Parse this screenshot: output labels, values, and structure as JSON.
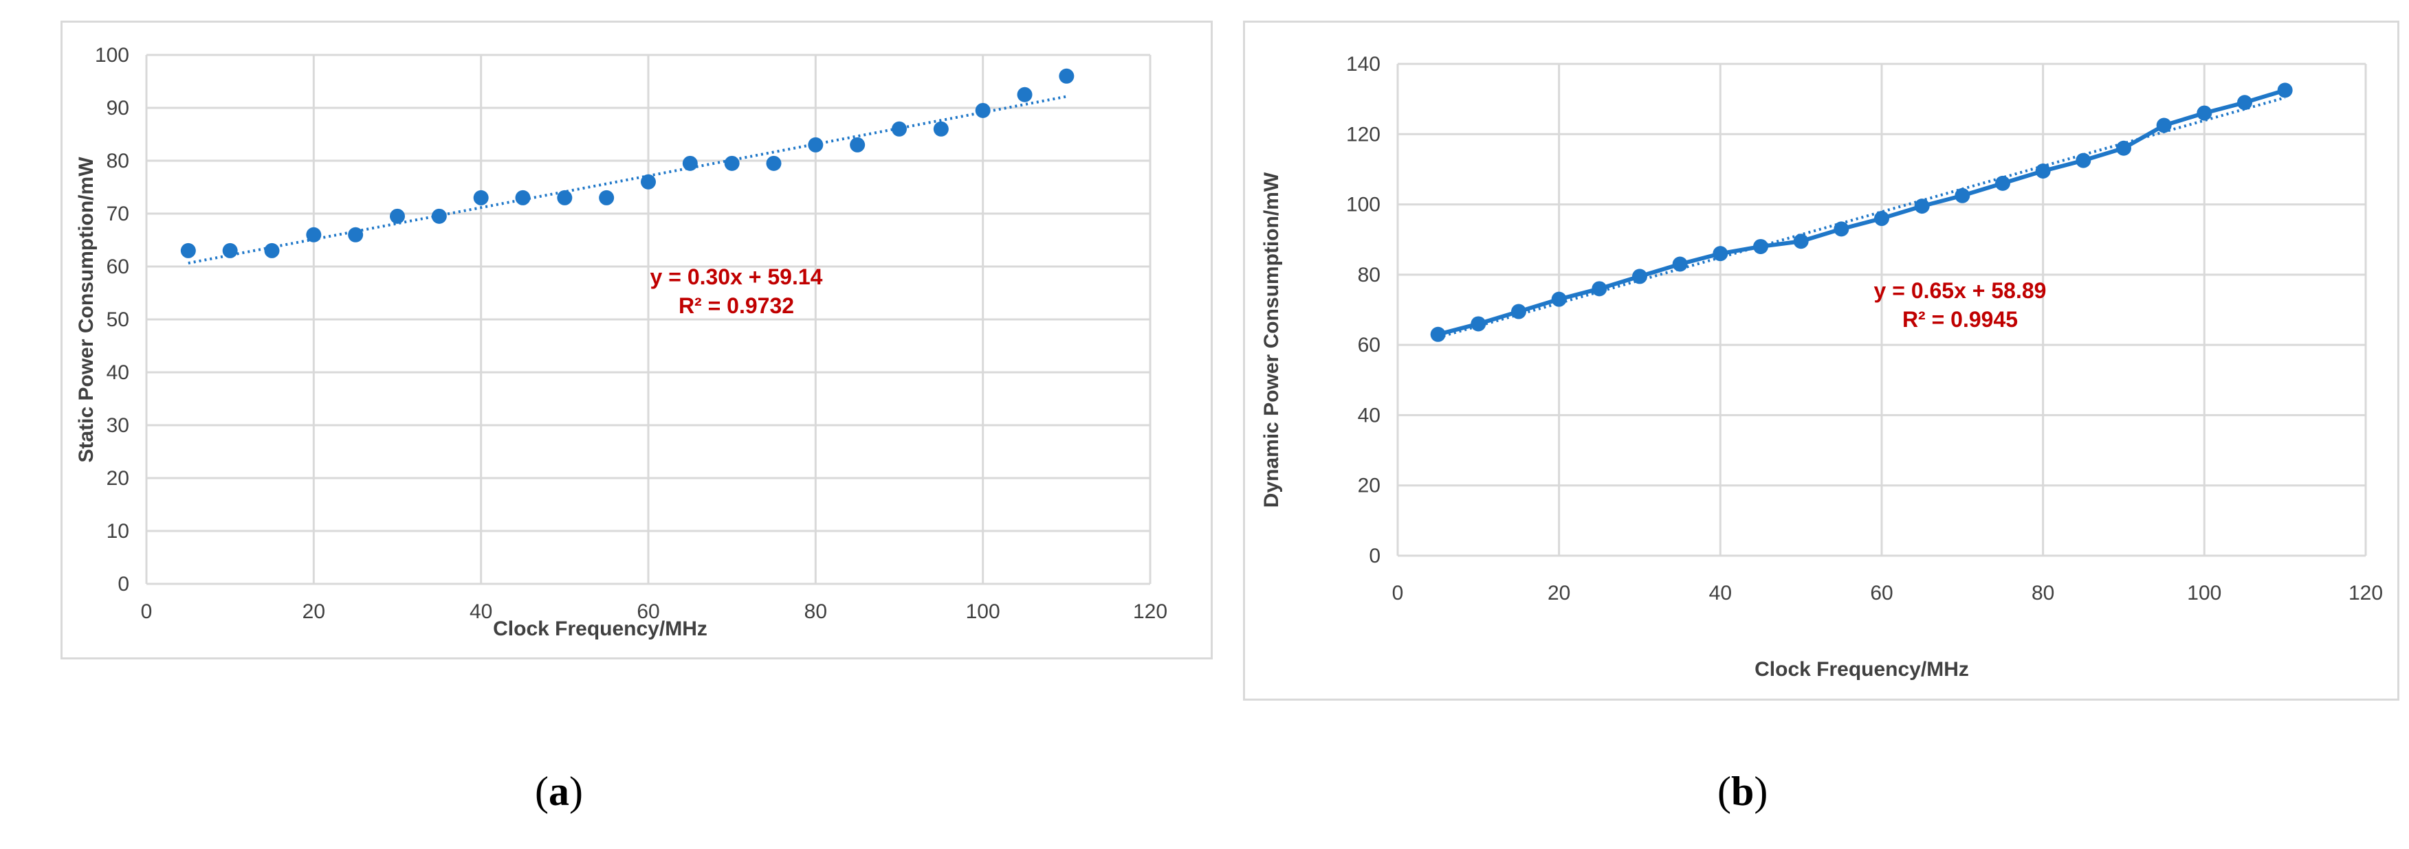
{
  "captions": {
    "a_open": "(",
    "a_letter": "a",
    "a_close": ")",
    "b_open": "(",
    "b_letter": "b",
    "b_close": ")"
  },
  "chart_data": [
    {
      "type": "scatter",
      "panel": "a",
      "xlabel": "Clock Frequency/MHz",
      "ylabel": "Static Power Consumption/mW",
      "xlim": [
        0,
        120
      ],
      "ylim": [
        0,
        100
      ],
      "xticks": [
        0,
        20,
        40,
        60,
        80,
        100,
        120
      ],
      "yticks": [
        0,
        10,
        20,
        30,
        40,
        50,
        60,
        70,
        80,
        90,
        100
      ],
      "grid": true,
      "series": [
        {
          "x": [
            5,
            10,
            15,
            20,
            25,
            30,
            35,
            40,
            45,
            50,
            55,
            60,
            65,
            70,
            75,
            80,
            85,
            90,
            95,
            100,
            105,
            110
          ],
          "values": [
            63,
            63,
            63,
            66,
            66,
            69.5,
            69.5,
            73,
            73,
            73,
            73,
            76,
            79.5,
            79.5,
            79.5,
            83,
            83,
            86,
            86,
            89.5,
            92.5,
            96
          ],
          "color": "#1f77c8"
        }
      ],
      "trendline": {
        "slope": 0.3,
        "intercept": 59.14,
        "x_range": [
          5,
          110
        ],
        "style": "dotted",
        "color": "#1f77c8"
      },
      "equation": "y = 0.30x + 59.14",
      "r2": "R² = 0.9732"
    },
    {
      "type": "line",
      "panel": "b",
      "xlabel": "Clock Frequency/MHz",
      "ylabel": "Dynamic Power Consumption/mW",
      "xlim": [
        0,
        120
      ],
      "ylim": [
        0,
        140
      ],
      "xticks": [
        0,
        20,
        40,
        60,
        80,
        100,
        120
      ],
      "yticks": [
        0,
        20,
        40,
        60,
        80,
        100,
        120,
        140
      ],
      "grid": true,
      "series": [
        {
          "x": [
            5,
            10,
            15,
            20,
            25,
            30,
            35,
            40,
            45,
            50,
            55,
            60,
            65,
            70,
            75,
            80,
            85,
            90,
            95,
            100,
            105,
            110
          ],
          "values": [
            63,
            66,
            69.5,
            73,
            76,
            79.5,
            83,
            86,
            88,
            89.5,
            93,
            96,
            99.5,
            102.5,
            106,
            109.5,
            112.5,
            116,
            122.5,
            126,
            129,
            132.5
          ],
          "color": "#1f77c8"
        }
      ],
      "trendline": {
        "slope": 0.65,
        "intercept": 58.89,
        "x_range": [
          5,
          110
        ],
        "style": "dotted",
        "color": "#1f77c8"
      },
      "equation": "y = 0.65x + 58.89",
      "r2": "R² = 0.9945"
    }
  ]
}
